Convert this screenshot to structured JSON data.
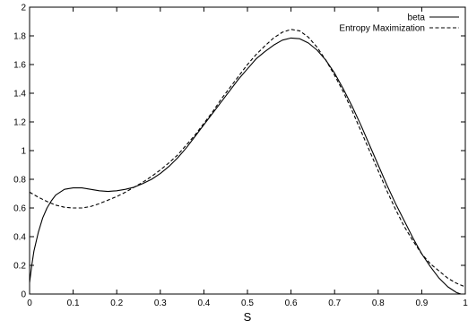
{
  "chart_data": {
    "type": "line",
    "title": "",
    "xlabel": "S",
    "ylabel": "",
    "xlim": [
      0,
      1
    ],
    "ylim": [
      0,
      2
    ],
    "xticks": [
      0,
      0.1,
      0.2,
      0.3,
      0.4,
      0.5,
      0.6,
      0.7,
      0.8,
      0.9,
      1
    ],
    "yticks": [
      0,
      0.2,
      0.4,
      0.6,
      0.8,
      1,
      1.2,
      1.4,
      1.6,
      1.8,
      2
    ],
    "xtick_labels": [
      "0",
      "0.1",
      "0.2",
      "0.3",
      "0.4",
      "0.5",
      "0.6",
      "0.7",
      "0.8",
      "0.9",
      "1"
    ],
    "ytick_labels": [
      "0",
      "0.2",
      "0.4",
      "0.6",
      "0.8",
      "1",
      "1.2",
      "1.4",
      "1.6",
      "1.8",
      "2"
    ],
    "grid": false,
    "legend_position": "top-right",
    "series": [
      {
        "name": "beta",
        "style": "solid",
        "color": "#000000",
        "x": [
          0,
          0.005,
          0.01,
          0.02,
          0.03,
          0.04,
          0.05,
          0.06,
          0.08,
          0.1,
          0.12,
          0.14,
          0.16,
          0.18,
          0.2,
          0.22,
          0.24,
          0.26,
          0.28,
          0.3,
          0.32,
          0.34,
          0.36,
          0.38,
          0.4,
          0.42,
          0.44,
          0.46,
          0.48,
          0.5,
          0.52,
          0.54,
          0.56,
          0.58,
          0.6,
          0.62,
          0.64,
          0.66,
          0.68,
          0.7,
          0.72,
          0.74,
          0.76,
          0.78,
          0.8,
          0.82,
          0.84,
          0.86,
          0.88,
          0.9,
          0.92,
          0.94,
          0.96,
          0.98,
          0.99,
          1.0
        ],
        "y": [
          0.08,
          0.2,
          0.3,
          0.43,
          0.53,
          0.6,
          0.65,
          0.69,
          0.73,
          0.74,
          0.74,
          0.73,
          0.72,
          0.715,
          0.72,
          0.73,
          0.745,
          0.77,
          0.8,
          0.84,
          0.89,
          0.95,
          1.02,
          1.1,
          1.18,
          1.26,
          1.34,
          1.42,
          1.5,
          1.57,
          1.64,
          1.69,
          1.735,
          1.77,
          1.785,
          1.78,
          1.75,
          1.7,
          1.63,
          1.54,
          1.43,
          1.31,
          1.18,
          1.04,
          0.9,
          0.76,
          0.63,
          0.51,
          0.39,
          0.28,
          0.19,
          0.11,
          0.05,
          0.01,
          0.0,
          0.0
        ]
      },
      {
        "name": "Entropy Maximization",
        "style": "dashed",
        "color": "#000000",
        "x": [
          0,
          0.02,
          0.04,
          0.06,
          0.08,
          0.1,
          0.12,
          0.14,
          0.16,
          0.18,
          0.2,
          0.22,
          0.24,
          0.26,
          0.28,
          0.3,
          0.32,
          0.34,
          0.36,
          0.38,
          0.4,
          0.42,
          0.44,
          0.46,
          0.48,
          0.5,
          0.52,
          0.54,
          0.56,
          0.58,
          0.6,
          0.62,
          0.64,
          0.66,
          0.68,
          0.7,
          0.72,
          0.74,
          0.76,
          0.78,
          0.8,
          0.82,
          0.84,
          0.86,
          0.88,
          0.9,
          0.92,
          0.94,
          0.96,
          0.98,
          1.0
        ],
        "y": [
          0.71,
          0.675,
          0.645,
          0.62,
          0.605,
          0.6,
          0.6,
          0.61,
          0.63,
          0.655,
          0.68,
          0.71,
          0.745,
          0.78,
          0.82,
          0.865,
          0.915,
          0.97,
          1.04,
          1.11,
          1.19,
          1.27,
          1.36,
          1.44,
          1.52,
          1.6,
          1.67,
          1.73,
          1.785,
          1.825,
          1.845,
          1.835,
          1.79,
          1.72,
          1.63,
          1.525,
          1.41,
          1.28,
          1.14,
          1.0,
          0.86,
          0.72,
          0.59,
          0.47,
          0.37,
          0.28,
          0.21,
          0.16,
          0.11,
          0.075,
          0.05
        ]
      }
    ]
  }
}
